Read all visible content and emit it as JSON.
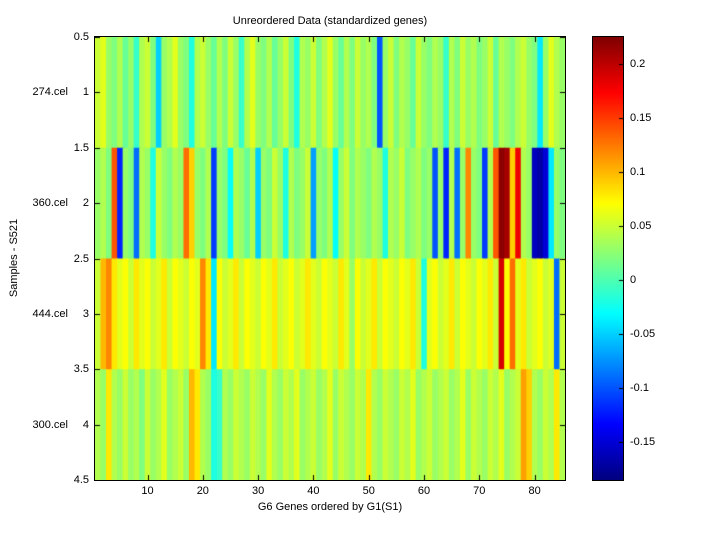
{
  "chart_data": {
    "type": "heatmap",
    "title": "Unreordered Data (standardized genes)",
    "xlabel": "G6 Genes ordered by G1(S1)",
    "ylabel": "Samples - S521",
    "colormap": "jet",
    "clim": [
      -0.185,
      0.225
    ],
    "x_range": [
      0.5,
      85.5
    ],
    "y_range": [
      0.5,
      4.5
    ],
    "xticks": [
      10,
      20,
      30,
      40,
      50,
      60,
      70,
      80
    ],
    "yticks": [
      0.5,
      1,
      1.5,
      2,
      2.5,
      3,
      3.5,
      4,
      4.5
    ],
    "colorbar_ticks": [
      0.2,
      0.15,
      0.1,
      0.05,
      0,
      -0.05,
      -0.1,
      -0.15
    ],
    "row_labels": [
      "274.cel",
      "360.cel",
      "444.cel",
      "300.cel"
    ],
    "rows": [
      [
        0.05,
        0.06,
        0.03,
        0.02,
        0.04,
        0.01,
        0.03,
        -0.01,
        0.04,
        0.05,
        0.02,
        -0.05,
        0.03,
        0.04,
        0.06,
        0.03,
        0.02,
        -0.02,
        0.04,
        0.05,
        0.03,
        0.01,
        0.04,
        0.02,
        0.05,
        0.03,
        -0.01,
        0.04,
        0.06,
        0.03,
        0.02,
        0.04,
        0.01,
        0.03,
        0.05,
        0.02,
        -0.02,
        0.04,
        0.03,
        0.05,
        0.02,
        0.04,
        0.06,
        0.03,
        0.01,
        0.04,
        0.02,
        0.05,
        0.03,
        0.04,
        0.02,
        -0.1,
        0.03,
        0.05,
        0.02,
        0.04,
        0.03,
        0.01,
        0.05,
        0.03,
        0.02,
        0.04,
        0.03,
        -0.01,
        0.04,
        0.02,
        0.05,
        0.03,
        0.04,
        0.02,
        0.03,
        0.05,
        0.01,
        0.04,
        0.03,
        0.02,
        0.04,
        0.05,
        0.03,
        0.02,
        -0.04,
        0.03,
        0.06,
        0.04,
        0.03
      ],
      [
        0.03,
        0.04,
        0.02,
        0.14,
        -0.12,
        0.03,
        0.02,
        -0.09,
        0.04,
        0.03,
        -0.02,
        0.05,
        0.03,
        0.02,
        0.04,
        0.03,
        0.13,
        0.09,
        0.03,
        0.02,
        0.04,
        -0.11,
        0.03,
        0.02,
        -0.03,
        0.04,
        0.03,
        0.01,
        0.04,
        -0.05,
        0.03,
        0.02,
        0.05,
        0.03,
        -0.02,
        0.04,
        0.02,
        0.03,
        0.05,
        -0.07,
        0.03,
        0.02,
        0.04,
        -0.03,
        0.03,
        0.05,
        0.02,
        0.04,
        0.03,
        0.02,
        0.04,
        0.03,
        -0.02,
        0.04,
        0.03,
        0.05,
        0.02,
        0.03,
        0.04,
        0.02,
        0.03,
        -0.1,
        0.03,
        -0.12,
        0.04,
        -0.09,
        0.03,
        0.12,
        0.03,
        0.02,
        -0.11,
        0.04,
        0.14,
        0.22,
        0.21,
        0.09,
        0.18,
        0.04,
        0.03,
        -0.16,
        -0.17,
        -0.15,
        -0.04,
        0.03,
        0.02
      ],
      [
        0.05,
        0.1,
        0.12,
        0.08,
        0.06,
        0.07,
        0.05,
        0.08,
        0.06,
        0.07,
        0.05,
        0.06,
        0.08,
        0.05,
        0.07,
        0.06,
        0.05,
        0.07,
        0.06,
        0.12,
        0.08,
        -0.04,
        0.07,
        0.05,
        0.06,
        0.08,
        0.05,
        0.07,
        0.06,
        0.05,
        0.07,
        0.06,
        0.08,
        0.05,
        0.06,
        0.07,
        0.05,
        0.06,
        0.08,
        0.06,
        0.05,
        0.07,
        0.06,
        0.05,
        0.08,
        0.06,
        0.03,
        0.07,
        0.05,
        0.06,
        0.08,
        0.05,
        0.07,
        0.06,
        0.05,
        0.07,
        0.06,
        0.08,
        0.05,
        -0.02,
        0.06,
        0.07,
        0.05,
        0.06,
        0.08,
        0.05,
        0.07,
        0.06,
        0.05,
        0.07,
        0.06,
        0.08,
        0.05,
        0.19,
        0.07,
        0.13,
        0.06,
        0.08,
        0.05,
        0.06,
        0.07,
        0.05,
        0.06,
        -0.09,
        0.05
      ],
      [
        0.04,
        0.03,
        0.08,
        0.04,
        0.03,
        0.05,
        0.03,
        0.04,
        0.02,
        0.05,
        0.03,
        0.04,
        0.06,
        0.03,
        0.04,
        0.05,
        0.03,
        0.1,
        0.08,
        0.04,
        0.03,
        -0.02,
        -0.01,
        0.04,
        0.03,
        0.05,
        0.04,
        0.03,
        0.05,
        0.04,
        0.03,
        0.06,
        0.04,
        0.03,
        0.05,
        0.04,
        0.06,
        0.03,
        0.04,
        0.05,
        0.03,
        0.04,
        0.06,
        0.03,
        0.05,
        0.04,
        0.03,
        0.05,
        0.04,
        0.08,
        0.04,
        0.03,
        0.05,
        0.04,
        0.03,
        0.05,
        0.04,
        0.06,
        0.03,
        0.04,
        0.05,
        0.03,
        0.04,
        0.05,
        0.03,
        0.04,
        0.06,
        0.03,
        0.05,
        0.04,
        0.03,
        0.05,
        0.04,
        0.06,
        0.03,
        0.04,
        0.05,
        0.11,
        0.09,
        0.04,
        0.03,
        0.05,
        0.04,
        0.08,
        0.04
      ]
    ]
  }
}
